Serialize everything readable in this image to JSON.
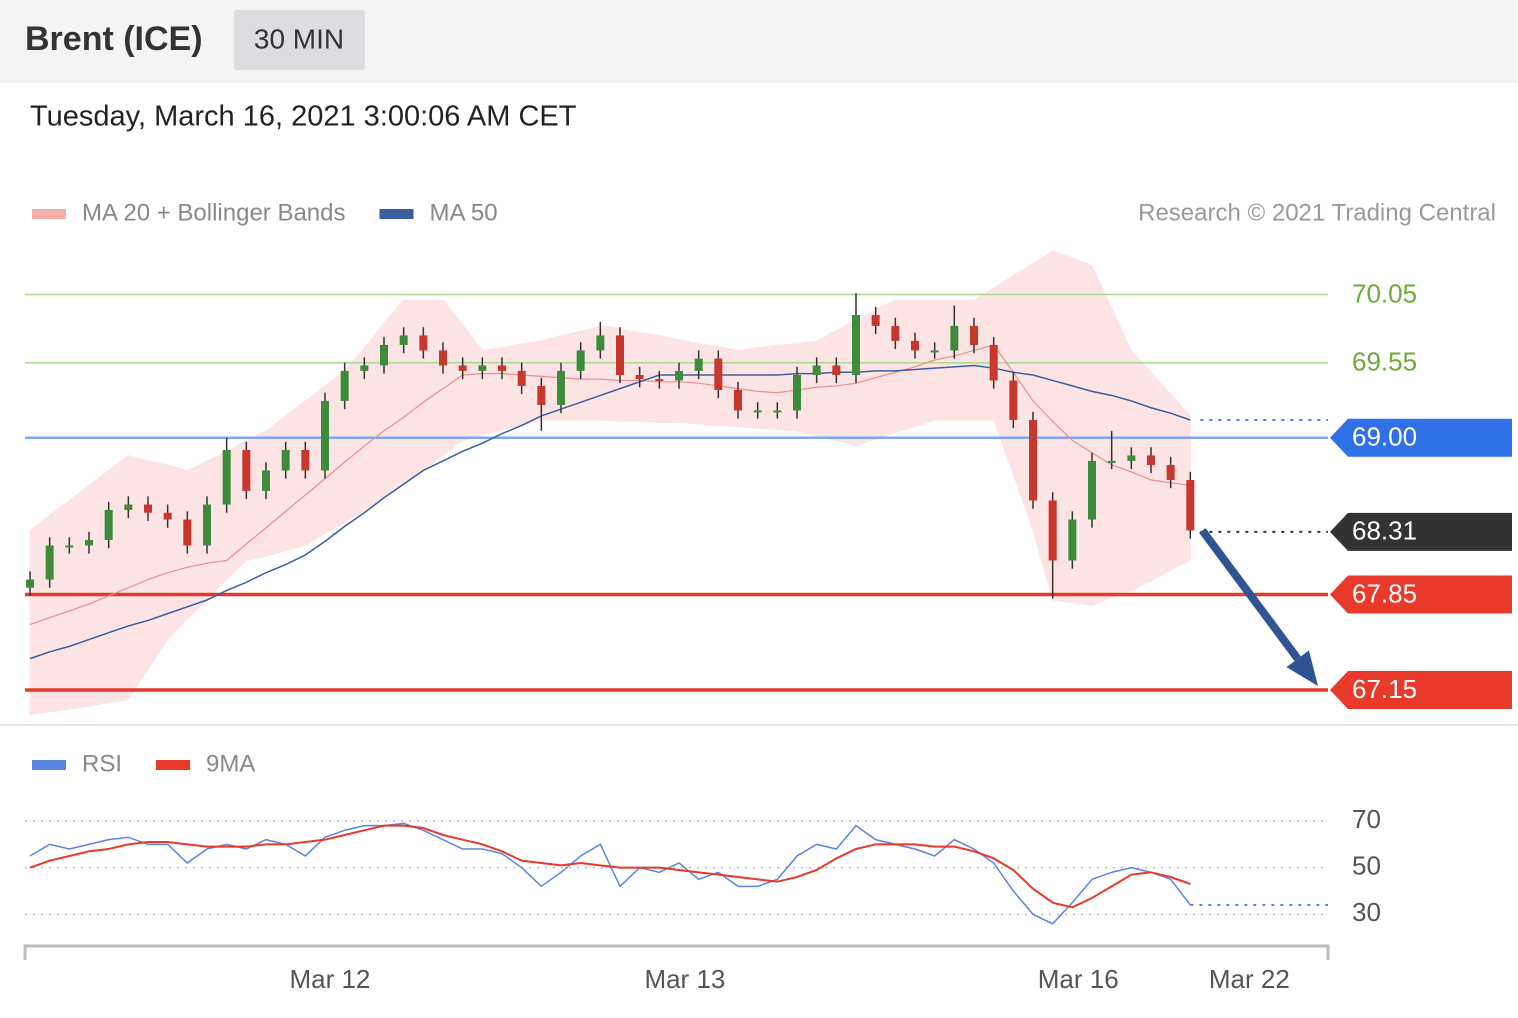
{
  "header": {
    "title": "Brent (ICE)",
    "interval": "30 MIN",
    "date": "Tuesday, March 16, 2021 3:00:06 AM CET"
  },
  "chart_data": [
    {
      "type": "candlestick",
      "copyright": "Research © 2021 Trading Central",
      "ylim": [
        66.93,
        70.45
      ],
      "xlim": [
        0,
        66
      ],
      "up_color": "#3c8c3c",
      "down_color": "#c8372d",
      "open": [
        67.9,
        67.96,
        68.21,
        68.21,
        68.25,
        68.47,
        68.51,
        68.45,
        68.4,
        68.21,
        68.51,
        68.91,
        68.61,
        68.76,
        68.91,
        68.76,
        69.27,
        69.49,
        69.53,
        69.68,
        69.75,
        69.64,
        69.53,
        69.49,
        69.53,
        69.49,
        69.38,
        69.24,
        69.49,
        69.64,
        69.75,
        69.46,
        69.43,
        69.42,
        69.49,
        69.58,
        69.35,
        69.2,
        69.2,
        69.2,
        69.46,
        69.53,
        69.46,
        69.9,
        69.82,
        69.71,
        69.64,
        69.64,
        69.82,
        69.68,
        69.42,
        69.13,
        68.54,
        68.1,
        68.4,
        68.83,
        68.83,
        68.87,
        68.8,
        68.69
      ],
      "high": [
        68.02,
        68.27,
        68.27,
        68.31,
        68.53,
        68.57,
        68.57,
        68.51,
        68.46,
        68.57,
        69.0,
        68.97,
        68.82,
        68.97,
        68.97,
        69.33,
        69.55,
        69.59,
        69.74,
        69.81,
        69.81,
        69.7,
        69.59,
        69.59,
        69.59,
        69.55,
        69.44,
        69.55,
        69.7,
        69.85,
        69.81,
        69.52,
        69.49,
        69.55,
        69.64,
        69.64,
        69.41,
        69.26,
        69.26,
        69.52,
        69.59,
        69.59,
        70.06,
        69.96,
        69.88,
        69.77,
        69.7,
        69.97,
        69.88,
        69.74,
        69.48,
        69.19,
        68.6,
        68.46,
        68.89,
        69.05,
        68.93,
        68.93,
        68.86,
        68.75
      ],
      "low": [
        67.84,
        67.9,
        68.15,
        68.15,
        68.19,
        68.41,
        68.39,
        68.34,
        68.15,
        68.15,
        68.45,
        68.55,
        68.55,
        68.7,
        68.7,
        68.7,
        69.21,
        69.43,
        69.47,
        69.62,
        69.58,
        69.47,
        69.43,
        69.43,
        69.43,
        69.32,
        69.05,
        69.18,
        69.43,
        69.58,
        69.4,
        69.37,
        69.36,
        69.36,
        69.43,
        69.29,
        69.14,
        69.14,
        69.14,
        69.14,
        69.4,
        69.4,
        69.4,
        69.76,
        69.65,
        69.58,
        69.58,
        69.58,
        69.62,
        69.36,
        69.07,
        68.48,
        67.82,
        68.04,
        68.34,
        68.77,
        68.77,
        68.74,
        68.63,
        68.26
      ],
      "close": [
        67.96,
        68.21,
        68.21,
        68.25,
        68.47,
        68.51,
        68.45,
        68.4,
        68.21,
        68.51,
        68.91,
        68.61,
        68.76,
        68.91,
        68.76,
        69.27,
        69.49,
        69.53,
        69.68,
        69.75,
        69.64,
        69.53,
        69.49,
        69.53,
        69.49,
        69.38,
        69.24,
        69.49,
        69.64,
        69.75,
        69.46,
        69.43,
        69.42,
        69.49,
        69.58,
        69.35,
        69.2,
        69.2,
        69.2,
        69.46,
        69.53,
        69.46,
        69.9,
        69.82,
        69.71,
        69.64,
        69.64,
        69.82,
        69.68,
        69.42,
        69.13,
        68.54,
        68.1,
        68.4,
        68.83,
        68.83,
        68.87,
        68.8,
        68.69,
        68.32
      ],
      "series": [
        {
          "name": "MA 20 + Bollinger Bands",
          "color": "#f08c8c",
          "band_color": "#fde4e4",
          "values": [
            67.63,
            67.68,
            67.73,
            67.78,
            67.84,
            67.9,
            67.96,
            68.01,
            68.05,
            68.08,
            68.1,
            68.22,
            68.34,
            68.46,
            68.58,
            68.7,
            68.82,
            68.94,
            69.05,
            69.15,
            69.26,
            69.36,
            69.46,
            69.47,
            69.47,
            69.46,
            69.45,
            69.44,
            69.43,
            69.43,
            69.42,
            69.42,
            69.41,
            69.41,
            69.4,
            69.38,
            69.36,
            69.34,
            69.33,
            69.35,
            69.37,
            69.38,
            69.4,
            69.44,
            69.48,
            69.52,
            69.57,
            69.6,
            69.64,
            69.68,
            69.48,
            69.27,
            69.12,
            68.98,
            68.89,
            68.8,
            68.75,
            68.69,
            68.67,
            68.65
          ],
          "upper": [
            68.32,
            68.43,
            68.54,
            68.65,
            68.76,
            68.87,
            68.83,
            68.8,
            68.76,
            68.83,
            68.9,
            68.98,
            69.05,
            69.16,
            69.27,
            69.38,
            69.49,
            69.66,
            69.84,
            70.01,
            70.01,
            70.01,
            69.83,
            69.64,
            69.66,
            69.69,
            69.71,
            69.75,
            69.78,
            69.82,
            69.8,
            69.77,
            69.75,
            69.72,
            69.69,
            69.67,
            69.64,
            69.66,
            69.68,
            69.69,
            69.71,
            69.79,
            69.86,
            69.94,
            70.01,
            70.01,
            70.01,
            70.01,
            70.01,
            70.1,
            70.19,
            70.28,
            70.37,
            70.32,
            70.26,
            69.95,
            69.64,
            69.48,
            69.32,
            69.16
          ],
          "lower": [
            66.97,
            66.99,
            67.01,
            67.03,
            67.06,
            67.08,
            67.3,
            67.52,
            67.67,
            67.81,
            67.96,
            68.1,
            68.13,
            68.17,
            68.21,
            68.3,
            68.38,
            68.47,
            68.57,
            68.66,
            68.76,
            68.87,
            68.98,
            69.02,
            69.06,
            69.09,
            69.13,
            69.13,
            69.13,
            69.13,
            69.12,
            69.12,
            69.11,
            69.11,
            69.1,
            69.09,
            69.08,
            69.07,
            69.06,
            69.05,
            69.01,
            68.98,
            68.94,
            68.99,
            69.04,
            69.08,
            69.13,
            69.13,
            69.13,
            69.13,
            68.73,
            68.32,
            67.81,
            67.79,
            67.77,
            67.83,
            67.88,
            67.95,
            68.03,
            68.1
          ]
        },
        {
          "name": "MA 50",
          "color": "#3a5ea0",
          "values": [
            67.38,
            67.43,
            67.47,
            67.52,
            67.57,
            67.62,
            67.66,
            67.71,
            67.76,
            67.81,
            67.88,
            67.94,
            68.01,
            68.07,
            68.14,
            68.24,
            68.35,
            68.45,
            68.56,
            68.66,
            68.76,
            68.83,
            68.9,
            68.96,
            69.03,
            69.09,
            69.16,
            69.21,
            69.26,
            69.31,
            69.36,
            69.41,
            69.46,
            69.46,
            69.46,
            69.46,
            69.46,
            69.46,
            69.46,
            69.47,
            69.47,
            69.48,
            69.48,
            69.49,
            69.49,
            69.5,
            69.51,
            69.52,
            69.53,
            69.51,
            69.48,
            69.46,
            69.42,
            69.38,
            69.34,
            69.31,
            69.27,
            69.22,
            69.18,
            69.13
          ]
        }
      ],
      "levels": [
        {
          "value": 70.05,
          "color": "#a9d98f",
          "text_color": "#6aab3a",
          "width": 1.5,
          "line": "solid",
          "box": false
        },
        {
          "value": 69.55,
          "color": "#a9d98f",
          "text_color": "#6aab3a",
          "width": 1.5,
          "line": "solid",
          "box": false
        },
        {
          "value": 69,
          "label": "69.00",
          "color": "#7fa6f2",
          "box_color": "#2f6fe8",
          "width": 2.5,
          "line": "solid",
          "box": true
        },
        {
          "value": 68.31,
          "color": "#333333",
          "box_color": "#333333",
          "width": 2,
          "line": "dotted",
          "box": true
        },
        {
          "value": 67.85,
          "color": "#e8392a",
          "box_color": "#e8392a",
          "width": 3.5,
          "line": "solid",
          "box": true
        },
        {
          "value": 67.15,
          "color": "#e8392a",
          "box_color": "#e8392a",
          "width": 3.5,
          "line": "solid",
          "box": true
        }
      ]
    },
    {
      "type": "line",
      "ylim": [
        19,
        79
      ],
      "yticks": [
        30,
        50,
        70
      ],
      "grid": true,
      "xlim": [
        0,
        66
      ],
      "xticks": [
        {
          "value": 15.25,
          "label": "Mar 12"
        },
        {
          "value": 33.3,
          "label": "Mar 13"
        },
        {
          "value": 53.3,
          "label": "Mar 16"
        },
        {
          "value": 62,
          "label": "Mar 22"
        }
      ],
      "series": [
        {
          "name": "RSI",
          "color": "#5b84e0",
          "values": [
            55,
            60,
            58,
            60,
            62,
            63,
            60,
            60,
            52,
            58,
            60,
            58,
            62,
            60,
            55,
            63,
            66,
            68,
            68,
            69,
            66,
            62,
            58,
            58,
            56,
            50,
            42,
            48,
            55,
            60,
            42,
            50,
            48,
            52,
            45,
            48,
            42,
            42,
            45,
            55,
            60,
            58,
            68,
            62,
            60,
            58,
            55,
            62,
            58,
            52,
            40,
            30,
            26,
            35,
            45,
            48,
            50,
            48,
            45,
            34
          ]
        },
        {
          "name": "9MA",
          "color": "#e8392a",
          "values": [
            50,
            53,
            55,
            57,
            58,
            60,
            61,
            61,
            60,
            59,
            59,
            59,
            60,
            60,
            61,
            62,
            64,
            66,
            68,
            68,
            67,
            64,
            62,
            60,
            57,
            53,
            52,
            51,
            52,
            51,
            50,
            50,
            50,
            49,
            48,
            47,
            46,
            45,
            44,
            46,
            49,
            54,
            58,
            60,
            60,
            60,
            59,
            59,
            57,
            54,
            49,
            41,
            35,
            33,
            37,
            42,
            47,
            48,
            46,
            43
          ]
        }
      ]
    }
  ]
}
